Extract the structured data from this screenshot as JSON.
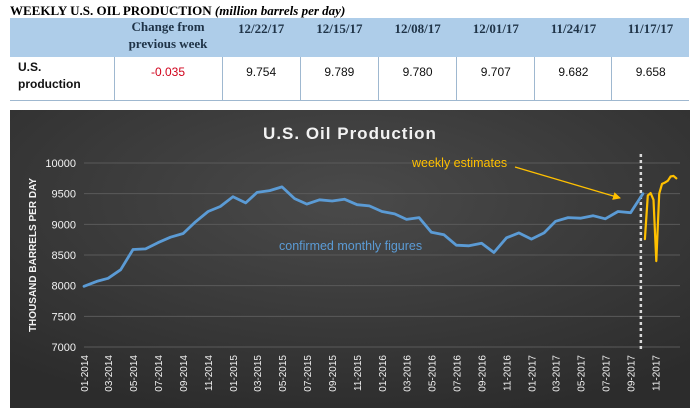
{
  "header": {
    "title_bold": "WEEKLY U.S. OIL PRODUCTION",
    "title_unit": "(million barrels per day)"
  },
  "table": {
    "change_header_line1": "Change from",
    "change_header_line2": "previous week",
    "dates": [
      "12/22/17",
      "12/15/17",
      "12/08/17",
      "12/01/17",
      "11/24/17",
      "11/17/17"
    ],
    "row_label_line1": "U.S.",
    "row_label_line2": "production",
    "change": "-0.035",
    "values": [
      "9.754",
      "9.789",
      "9.780",
      "9.707",
      "9.682",
      "9.658"
    ]
  },
  "colors": {
    "background": "#3a3a3a",
    "monthly_line": "#5b9bd5",
    "weekly_line": "#ffc000",
    "annotation_monthly": "#5b9bd5",
    "annotation_weekly": "#ffc000",
    "divider": "#d9d9d9",
    "header_fill": "#aecde9",
    "negative": "#d0021b"
  },
  "chart_data": {
    "type": "line",
    "title": "U.S. Oil Production",
    "xlabel": "",
    "ylabel": "THOUSAND BARRELS PER DAY",
    "ylim": [
      7000,
      10000
    ],
    "yticks": [
      7000,
      7500,
      8000,
      8500,
      9000,
      9500,
      10000
    ],
    "grid": true,
    "x_tick_labels": [
      "01-2014",
      "03-2014",
      "05-2014",
      "07-2014",
      "09-2014",
      "11-2014",
      "01-2015",
      "03-2015",
      "05-2015",
      "07-2015",
      "09-2015",
      "11-2015",
      "01-2016",
      "03-2016",
      "05-2016",
      "07-2016",
      "09-2016",
      "11-2016",
      "01-2017",
      "03-2017",
      "05-2017",
      "07-2017",
      "09-2017",
      "11-2017"
    ],
    "annotations": {
      "weekly": "weekly estimates",
      "monthly": "confirmed monthly figures"
    },
    "series": [
      {
        "name": "confirmed monthly figures",
        "color": "#5b9bd5",
        "points": [
          [
            "2014-01",
            7990
          ],
          [
            "2014-02",
            8070
          ],
          [
            "2014-03",
            8120
          ],
          [
            "2014-04",
            8260
          ],
          [
            "2014-05",
            8590
          ],
          [
            "2014-06",
            8600
          ],
          [
            "2014-07",
            8700
          ],
          [
            "2014-08",
            8790
          ],
          [
            "2014-09",
            8850
          ],
          [
            "2014-10",
            9040
          ],
          [
            "2014-11",
            9210
          ],
          [
            "2014-12",
            9290
          ],
          [
            "2015-01",
            9450
          ],
          [
            "2015-02",
            9350
          ],
          [
            "2015-03",
            9520
          ],
          [
            "2015-04",
            9550
          ],
          [
            "2015-05",
            9610
          ],
          [
            "2015-06",
            9420
          ],
          [
            "2015-07",
            9330
          ],
          [
            "2015-08",
            9400
          ],
          [
            "2015-09",
            9380
          ],
          [
            "2015-10",
            9410
          ],
          [
            "2015-11",
            9320
          ],
          [
            "2015-12",
            9300
          ],
          [
            "2016-01",
            9210
          ],
          [
            "2016-02",
            9170
          ],
          [
            "2016-03",
            9080
          ],
          [
            "2016-04",
            9110
          ],
          [
            "2016-05",
            8870
          ],
          [
            "2016-06",
            8830
          ],
          [
            "2016-07",
            8660
          ],
          [
            "2016-08",
            8650
          ],
          [
            "2016-09",
            8690
          ],
          [
            "2016-10",
            8540
          ],
          [
            "2016-11",
            8780
          ],
          [
            "2016-12",
            8860
          ],
          [
            "2017-01",
            8760
          ],
          [
            "2017-02",
            8860
          ],
          [
            "2017-03",
            9050
          ],
          [
            "2017-04",
            9110
          ],
          [
            "2017-05",
            9100
          ],
          [
            "2017-06",
            9140
          ],
          [
            "2017-07",
            9090
          ],
          [
            "2017-08",
            9210
          ],
          [
            "2017-09",
            9190
          ],
          [
            "2017-10",
            9500
          ]
        ]
      },
      {
        "name": "weekly estimates",
        "color": "#ffc000",
        "points": [
          [
            "2017-10-06",
            8760
          ],
          [
            "2017-10-13",
            9470
          ],
          [
            "2017-10-20",
            9510
          ],
          [
            "2017-10-27",
            9400
          ],
          [
            "2017-11-03",
            8400
          ],
          [
            "2017-11-10",
            9500
          ],
          [
            "2017-11-17",
            9660
          ],
          [
            "2017-11-24",
            9680
          ],
          [
            "2017-12-01",
            9710
          ],
          [
            "2017-12-08",
            9780
          ],
          [
            "2017-12-15",
            9790
          ],
          [
            "2017-12-22",
            9750
          ]
        ]
      }
    ]
  }
}
